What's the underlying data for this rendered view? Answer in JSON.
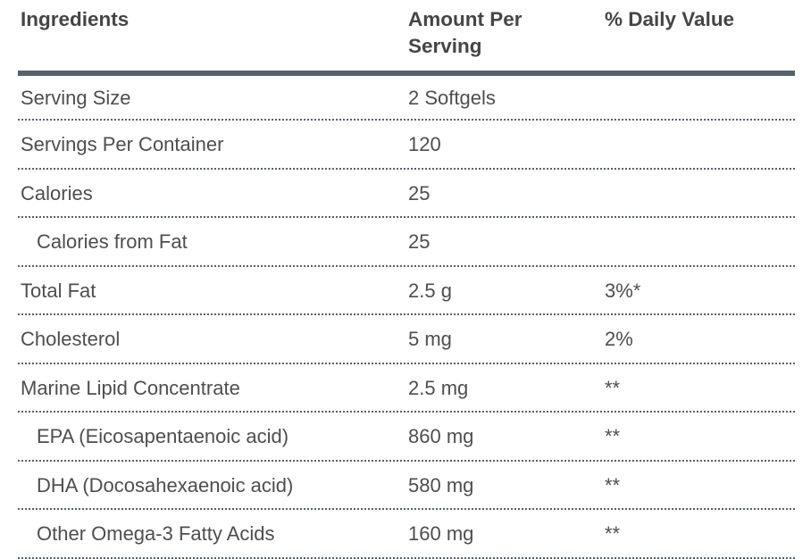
{
  "table": {
    "columns": [
      {
        "label": "Ingredients"
      },
      {
        "label": "Amount Per Serving"
      },
      {
        "label": "% Daily Value"
      }
    ],
    "rows": [
      {
        "ingredient": "Serving Size",
        "amount": "2 Softgels",
        "daily_value": "",
        "indent": false
      },
      {
        "ingredient": "Servings Per Container",
        "amount": "120",
        "daily_value": "",
        "indent": false
      },
      {
        "ingredient": "Calories",
        "amount": "25",
        "daily_value": "",
        "indent": false
      },
      {
        "ingredient": "Calories from Fat",
        "amount": "25",
        "daily_value": "",
        "indent": true
      },
      {
        "ingredient": "Total Fat",
        "amount": "2.5 g",
        "daily_value": "3%*",
        "indent": false
      },
      {
        "ingredient": "Cholesterol",
        "amount": "5 mg",
        "daily_value": "2%",
        "indent": false
      },
      {
        "ingredient": "Marine Lipid Concentrate",
        "amount": "2.5 mg",
        "daily_value": "**",
        "indent": false
      },
      {
        "ingredient": "EPA (Eicosapentaenoic acid)",
        "amount": "860 mg",
        "daily_value": "**",
        "indent": true
      },
      {
        "ingredient": "DHA (Docosahexaenoic acid)",
        "amount": "580 mg",
        "daily_value": "**",
        "indent": true
      },
      {
        "ingredient": "Other Omega-3 Fatty Acids",
        "amount": "160 mg",
        "daily_value": "**",
        "indent": true
      }
    ],
    "colors": {
      "rule": "#55616d",
      "header_text": "#454545",
      "body_text": "#4e4e4e"
    }
  }
}
